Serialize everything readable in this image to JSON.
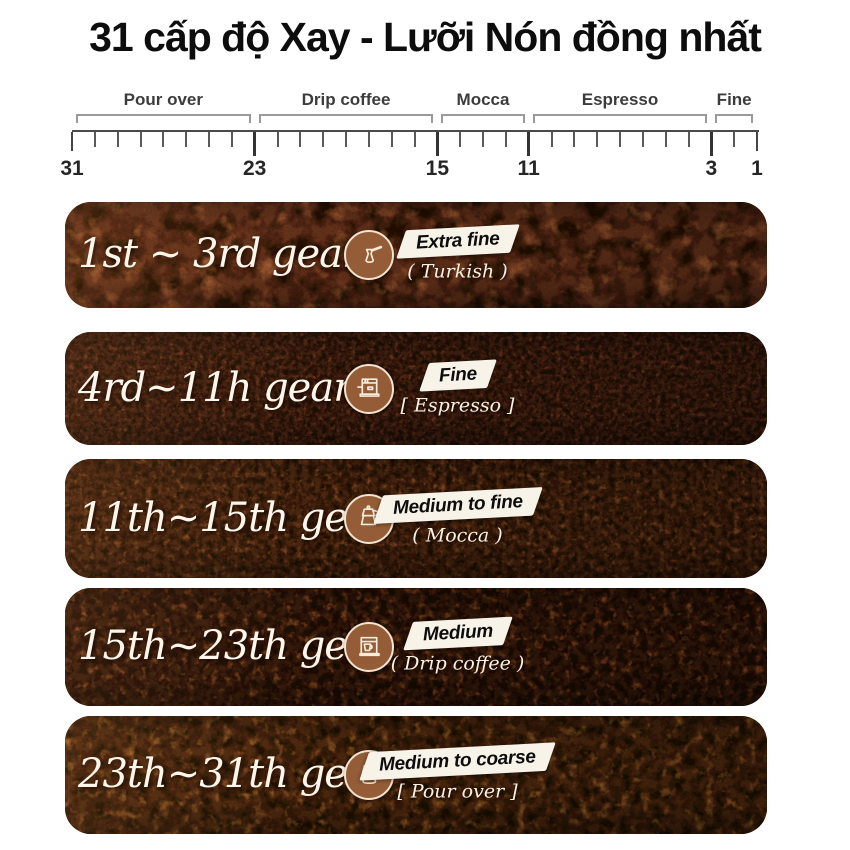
{
  "title": "31 cấp độ Xay - Lưỡi Nón đồng nhất",
  "scale": {
    "min": 1,
    "max": 31,
    "major_ticks": [
      31,
      23,
      15,
      11,
      3,
      1
    ],
    "segments": [
      {
        "label": "Pour over",
        "from": 31,
        "to": 23
      },
      {
        "label": "Drip coffee",
        "from": 23,
        "to": 15
      },
      {
        "label": "Mocca",
        "from": 15,
        "to": 11
      },
      {
        "label": "Espresso",
        "from": 11,
        "to": 3
      },
      {
        "label": "Fine",
        "from": 3,
        "to": 1
      }
    ]
  },
  "bands": [
    {
      "gear": "1st ~ 3rd gear",
      "grind": "Extra fine",
      "method": "( Turkish )",
      "icon": "turkish-pot-icon",
      "colors": {
        "base": "#603019",
        "dark": "#220d04",
        "light": "#b4683a"
      }
    },
    {
      "gear": "4rd~11h gear",
      "grind": "Fine",
      "method": "[ Espresso ]",
      "icon": "espresso-machine-icon",
      "colors": {
        "base": "#402010",
        "dark": "#170a04",
        "light": "#8a4526"
      }
    },
    {
      "gear": "11th~15th gear",
      "grind": "Medium to fine",
      "method": "( Mocca )",
      "icon": "moka-pot-icon",
      "colors": {
        "base": "#47250f",
        "dark": "#1c0c04",
        "light": "#9a5a2e"
      }
    },
    {
      "gear": "15th~23th gear",
      "grind": "Medium",
      "method": "( Drip coffee )",
      "icon": "drip-coffee-machine-icon",
      "colors": {
        "base": "#351a0a",
        "dark": "#130803",
        "light": "#a05526"
      }
    },
    {
      "gear": "23th~31th gear",
      "grind": "Medium to coarse",
      "method": "[ Pour over ]",
      "icon": "pour-over-carafe-icon",
      "colors": {
        "base": "#4a270e",
        "dark": "#1b0d04",
        "light": "#b4712e"
      }
    }
  ],
  "icon_circle_color": "#945d37",
  "ribbon_color": "#f7f3e9"
}
